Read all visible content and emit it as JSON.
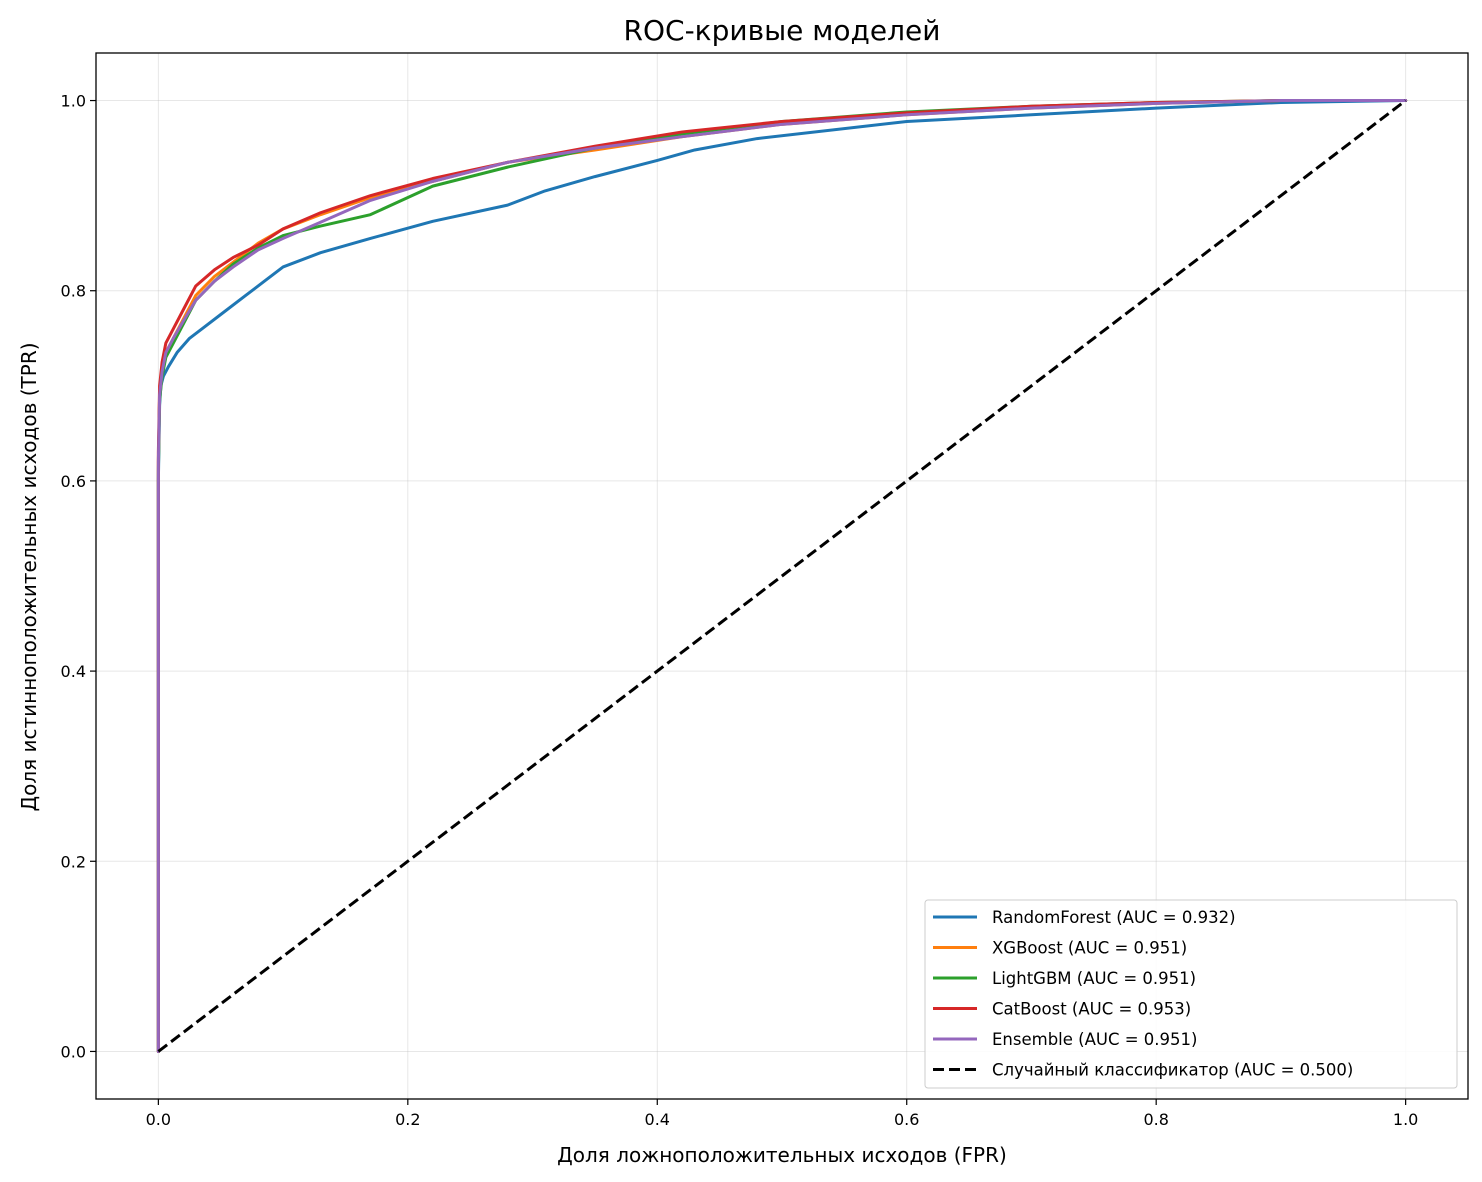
{
  "chart_data": {
    "type": "line",
    "title": "ROC-кривые моделей",
    "xlabel": "Доля ложноположительных исходов (FPR)",
    "ylabel": "Доля истинноположительных исходов (TPR)",
    "xlim": [
      -0.05,
      1.05
    ],
    "ylim": [
      -0.05,
      1.05
    ],
    "xticks": [
      {
        "value": 0.0,
        "label": "0.0"
      },
      {
        "value": 0.2,
        "label": "0.2"
      },
      {
        "value": 0.4,
        "label": "0.4"
      },
      {
        "value": 0.6,
        "label": "0.6"
      },
      {
        "value": 0.8,
        "label": "0.8"
      },
      {
        "value": 1.0,
        "label": "1.0"
      }
    ],
    "yticks": [
      {
        "value": 0.0,
        "label": "0.0"
      },
      {
        "value": 0.2,
        "label": "0.2"
      },
      {
        "value": 0.4,
        "label": "0.4"
      },
      {
        "value": 0.6,
        "label": "0.6"
      },
      {
        "value": 0.8,
        "label": "0.8"
      },
      {
        "value": 1.0,
        "label": "1.0"
      }
    ],
    "grid": true,
    "legend_position": "bottom-right",
    "series": [
      {
        "name": "RandomForest (AUC = 0.932)",
        "color": "#1f77b4",
        "dashed": false,
        "x": [
          0,
          0,
          0.001,
          0.002,
          0.004,
          0.008,
          0.015,
          0.025,
          0.035,
          0.05,
          0.07,
          0.085,
          0.1,
          0.13,
          0.17,
          0.22,
          0.28,
          0.31,
          0.35,
          0.4,
          0.43,
          0.48,
          0.6,
          0.7,
          0.8,
          0.9,
          1.0
        ],
        "y": [
          0,
          0.6,
          0.68,
          0.7,
          0.71,
          0.72,
          0.735,
          0.75,
          0.76,
          0.775,
          0.795,
          0.81,
          0.825,
          0.84,
          0.855,
          0.873,
          0.89,
          0.905,
          0.92,
          0.937,
          0.948,
          0.96,
          0.978,
          0.985,
          0.992,
          0.998,
          1.0
        ]
      },
      {
        "name": "XGBoost (AUC = 0.951)",
        "color": "#ff7f0e",
        "dashed": false,
        "x": [
          0,
          0,
          0.001,
          0.003,
          0.006,
          0.012,
          0.02,
          0.03,
          0.045,
          0.06,
          0.08,
          0.1,
          0.13,
          0.17,
          0.22,
          0.28,
          0.35,
          0.42,
          0.5,
          0.6,
          0.7,
          0.8,
          0.9,
          1.0
        ],
        "y": [
          0,
          0.62,
          0.69,
          0.715,
          0.735,
          0.75,
          0.77,
          0.795,
          0.815,
          0.83,
          0.85,
          0.865,
          0.88,
          0.898,
          0.915,
          0.935,
          0.948,
          0.962,
          0.975,
          0.985,
          0.992,
          0.997,
          1.0,
          1.0
        ]
      },
      {
        "name": "LightGBM (AUC = 0.951)",
        "color": "#2ca02c",
        "dashed": false,
        "x": [
          0,
          0,
          0.001,
          0.003,
          0.006,
          0.012,
          0.02,
          0.03,
          0.045,
          0.06,
          0.08,
          0.1,
          0.13,
          0.17,
          0.22,
          0.28,
          0.35,
          0.42,
          0.5,
          0.6,
          0.7,
          0.8,
          0.9,
          1.0
        ],
        "y": [
          0,
          0.61,
          0.685,
          0.71,
          0.73,
          0.745,
          0.765,
          0.79,
          0.81,
          0.828,
          0.845,
          0.858,
          0.868,
          0.88,
          0.91,
          0.93,
          0.95,
          0.965,
          0.978,
          0.988,
          0.994,
          0.998,
          1.0,
          1.0
        ]
      },
      {
        "name": "CatBoost (AUC = 0.953)",
        "color": "#d62728",
        "dashed": false,
        "x": [
          0,
          0,
          0.001,
          0.003,
          0.006,
          0.012,
          0.02,
          0.03,
          0.045,
          0.06,
          0.08,
          0.1,
          0.13,
          0.17,
          0.22,
          0.28,
          0.35,
          0.42,
          0.5,
          0.6,
          0.7,
          0.8,
          0.9,
          1.0
        ],
        "y": [
          0,
          0.63,
          0.7,
          0.725,
          0.745,
          0.76,
          0.78,
          0.805,
          0.822,
          0.835,
          0.848,
          0.865,
          0.882,
          0.9,
          0.918,
          0.935,
          0.952,
          0.967,
          0.978,
          0.987,
          0.994,
          0.998,
          1.0,
          1.0
        ]
      },
      {
        "name": "Ensemble (AUC = 0.951)",
        "color": "#9467bd",
        "dashed": false,
        "x": [
          0,
          0,
          0.001,
          0.003,
          0.006,
          0.012,
          0.02,
          0.03,
          0.045,
          0.06,
          0.08,
          0.1,
          0.13,
          0.17,
          0.22,
          0.28,
          0.35,
          0.42,
          0.5,
          0.6,
          0.7,
          0.8,
          0.9,
          1.0
        ],
        "y": [
          0,
          0.62,
          0.69,
          0.715,
          0.735,
          0.75,
          0.768,
          0.79,
          0.81,
          0.825,
          0.843,
          0.855,
          0.872,
          0.895,
          0.915,
          0.935,
          0.95,
          0.962,
          0.975,
          0.985,
          0.992,
          0.997,
          1.0,
          1.0
        ]
      },
      {
        "name": "Случайный классификатор (AUC = 0.500)",
        "color": "#000000",
        "dashed": true,
        "x": [
          0,
          1
        ],
        "y": [
          0,
          1
        ]
      }
    ]
  }
}
